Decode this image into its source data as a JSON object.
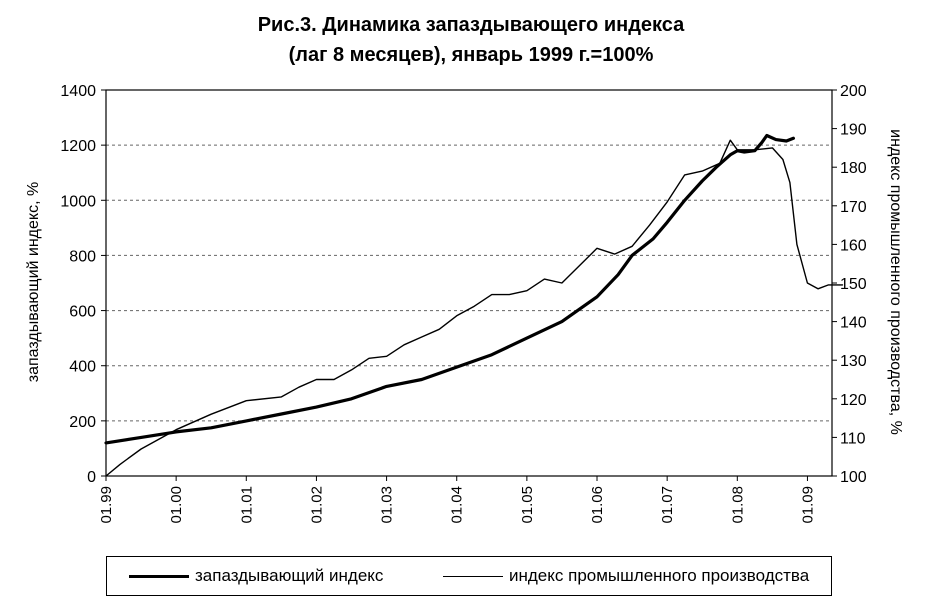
{
  "chart_data": {
    "type": "line",
    "title_lines": [
      "Рис.3. Динамика запаздывающего индекса",
      "(лаг 8 месяцев), январь 1999 г.=100%"
    ],
    "ylabel_left": "запаздывающий индекс, %",
    "ylabel_right": "индекс промышленного производства, %",
    "x_tick_labels": [
      "01.99",
      "01.00",
      "01.01",
      "01.02",
      "01.03",
      "01.04",
      "01.05",
      "01.06",
      "01.07",
      "01.08",
      "01.09"
    ],
    "ylim_left": [
      0,
      1400
    ],
    "ylim_right": [
      100,
      200
    ],
    "yticks_left": [
      0,
      200,
      400,
      600,
      800,
      1000,
      1200,
      1400
    ],
    "yticks_right": [
      100,
      110,
      120,
      130,
      140,
      150,
      160,
      170,
      180,
      190,
      200
    ],
    "grid": "horizontal-dashed",
    "legend_position": "bottom",
    "series": [
      {
        "name": "запаздывающий индекс",
        "axis": "left",
        "line_weight": "thick",
        "x": [
          1999.0,
          1999.5,
          2000.0,
          2000.5,
          2001.0,
          2001.5,
          2002.0,
          2002.5,
          2003.0,
          2003.5,
          2004.0,
          2004.5,
          2005.0,
          2005.5,
          2006.0,
          2006.3,
          2006.5,
          2006.8,
          2007.0,
          2007.25,
          2007.5,
          2007.7,
          2007.9,
          2008.0,
          2008.1,
          2008.25,
          2008.35,
          2008.42,
          2008.55,
          2008.7,
          2008.8
        ],
        "y": [
          120,
          140,
          160,
          175,
          200,
          225,
          250,
          280,
          325,
          350,
          395,
          440,
          500,
          560,
          650,
          730,
          800,
          860,
          920,
          1000,
          1070,
          1120,
          1165,
          1180,
          1175,
          1180,
          1210,
          1235,
          1220,
          1215,
          1225
        ]
      },
      {
        "name": "индекс промышленного производства",
        "axis": "right",
        "line_weight": "thin",
        "x": [
          1999.0,
          1999.2,
          1999.5,
          2000.0,
          2000.5,
          2001.0,
          2001.5,
          2001.75,
          2002.0,
          2002.25,
          2002.5,
          2002.75,
          2003.0,
          2003.25,
          2003.5,
          2003.75,
          2004.0,
          2004.25,
          2004.5,
          2004.75,
          2005.0,
          2005.25,
          2005.5,
          2006.0,
          2006.25,
          2006.5,
          2006.75,
          2007.0,
          2007.25,
          2007.5,
          2007.75,
          2007.9,
          2008.0,
          2008.25,
          2008.5,
          2008.65,
          2008.75,
          2008.85,
          2009.0,
          2009.15,
          2009.3,
          2009.5
        ],
        "y": [
          100,
          103,
          107,
          112,
          116,
          119.5,
          120.5,
          123,
          125,
          125,
          127.5,
          130.5,
          131,
          134,
          136,
          138,
          141.5,
          144,
          147,
          147,
          148,
          151,
          150,
          159,
          157.5,
          159.5,
          165,
          171,
          178,
          179,
          181,
          187,
          184.5,
          184.5,
          185,
          182,
          176,
          160,
          150,
          148.5,
          149.5,
          149.5
        ]
      }
    ]
  }
}
